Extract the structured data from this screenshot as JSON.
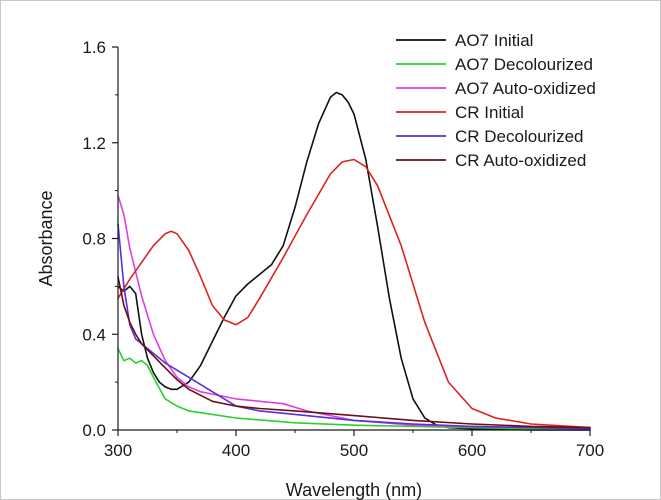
{
  "chart_data": {
    "type": "line",
    "xlabel": "Wavelength (nm)",
    "ylabel": "Absorbance",
    "xlim": [
      300,
      700
    ],
    "ylim": [
      0.0,
      1.6
    ],
    "xticks": [
      300,
      400,
      500,
      600,
      700
    ],
    "yticks": [
      0.0,
      0.4,
      0.8,
      1.2,
      1.6
    ],
    "xtick_labels": [
      "300",
      "400",
      "500",
      "600",
      "700"
    ],
    "ytick_labels": [
      "0.0",
      "0.4",
      "0.8",
      "1.2",
      "1.6"
    ],
    "grid": false,
    "legend_position": "top-right",
    "series": [
      {
        "name": "AO7 Initial",
        "color": "#111111",
        "x": [
          300,
          305,
          310,
          315,
          320,
          325,
          330,
          335,
          340,
          345,
          350,
          360,
          370,
          380,
          390,
          400,
          410,
          420,
          430,
          440,
          450,
          460,
          470,
          480,
          485,
          490,
          495,
          500,
          510,
          520,
          530,
          540,
          550,
          560,
          570,
          580,
          600,
          650,
          700
        ],
        "y": [
          0.6,
          0.58,
          0.6,
          0.57,
          0.4,
          0.3,
          0.24,
          0.2,
          0.18,
          0.17,
          0.17,
          0.2,
          0.27,
          0.37,
          0.47,
          0.56,
          0.61,
          0.65,
          0.69,
          0.77,
          0.93,
          1.12,
          1.28,
          1.39,
          1.41,
          1.4,
          1.37,
          1.32,
          1.13,
          0.85,
          0.55,
          0.3,
          0.13,
          0.05,
          0.02,
          0.01,
          0.005,
          0.0,
          0.0
        ]
      },
      {
        "name": "AO7 Decolourized",
        "color": "#2bd12b",
        "x": [
          300,
          305,
          310,
          315,
          320,
          325,
          330,
          340,
          350,
          360,
          380,
          400,
          450,
          500,
          550,
          600,
          650,
          700
        ],
        "y": [
          0.34,
          0.29,
          0.3,
          0.28,
          0.29,
          0.27,
          0.22,
          0.13,
          0.1,
          0.08,
          0.065,
          0.05,
          0.03,
          0.02,
          0.015,
          0.01,
          0.005,
          0.002
        ]
      },
      {
        "name": "AO7 Auto-oxidized",
        "color": "#e23de2",
        "x": [
          300,
          305,
          310,
          320,
          330,
          340,
          350,
          360,
          370,
          380,
          400,
          420,
          440,
          460,
          480,
          500,
          550,
          600,
          650,
          700
        ],
        "y": [
          0.98,
          0.9,
          0.76,
          0.56,
          0.4,
          0.29,
          0.22,
          0.18,
          0.16,
          0.15,
          0.13,
          0.12,
          0.11,
          0.08,
          0.06,
          0.04,
          0.02,
          0.015,
          0.01,
          0.005
        ]
      },
      {
        "name": "CR Initial",
        "color": "#dd2222",
        "x": [
          300,
          310,
          320,
          330,
          340,
          345,
          350,
          360,
          370,
          380,
          390,
          400,
          410,
          420,
          440,
          460,
          480,
          490,
          500,
          510,
          520,
          540,
          560,
          580,
          600,
          620,
          650,
          700
        ],
        "y": [
          0.55,
          0.63,
          0.7,
          0.77,
          0.82,
          0.83,
          0.82,
          0.75,
          0.64,
          0.52,
          0.46,
          0.44,
          0.47,
          0.55,
          0.72,
          0.9,
          1.07,
          1.12,
          1.13,
          1.1,
          1.02,
          0.77,
          0.45,
          0.2,
          0.09,
          0.05,
          0.025,
          0.01
        ]
      },
      {
        "name": "CR Decolourized",
        "color": "#5a2de0",
        "x": [
          300,
          305,
          310,
          315,
          320,
          330,
          340,
          350,
          360,
          380,
          400,
          420,
          450,
          500,
          550,
          600,
          650,
          700
        ],
        "y": [
          0.86,
          0.6,
          0.44,
          0.38,
          0.36,
          0.32,
          0.28,
          0.25,
          0.22,
          0.16,
          0.1,
          0.08,
          0.065,
          0.04,
          0.025,
          0.015,
          0.01,
          0.005
        ]
      },
      {
        "name": "CR Auto-oxidized",
        "color": "#6b1010",
        "x": [
          300,
          305,
          310,
          315,
          320,
          330,
          340,
          350,
          360,
          380,
          400,
          420,
          450,
          500,
          550,
          600,
          650,
          700
        ],
        "y": [
          0.64,
          0.52,
          0.45,
          0.4,
          0.36,
          0.31,
          0.26,
          0.21,
          0.17,
          0.12,
          0.1,
          0.09,
          0.08,
          0.06,
          0.04,
          0.025,
          0.015,
          0.01
        ]
      }
    ]
  }
}
